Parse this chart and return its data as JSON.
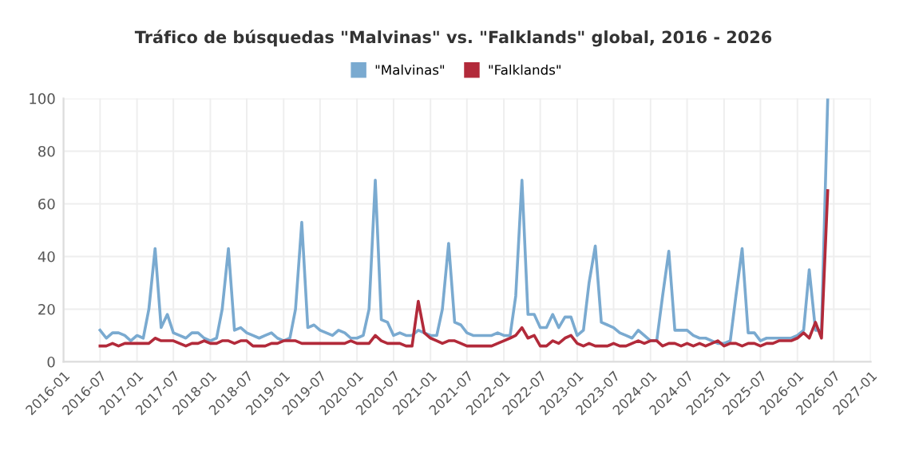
{
  "chart_data": {
    "type": "line",
    "title": "Tráfico de búsquedas \"Malvinas\" vs. \"Falklands\" global, 2016 - 2026",
    "xlim": [
      "2016-01",
      "2027-01"
    ],
    "xticks": [
      {
        "value": "2016-01",
        "label": "2016-01"
      },
      {
        "value": "2016-07",
        "label": "2016-07"
      },
      {
        "value": "2017-01",
        "label": "2017-01"
      },
      {
        "value": "2017-07",
        "label": "2017-07"
      },
      {
        "value": "2018-01",
        "label": "2018-01"
      },
      {
        "value": "2018-07",
        "label": "2018-07"
      },
      {
        "value": "2019-01",
        "label": "2019-01"
      },
      {
        "value": "2019-07",
        "label": "2019-07"
      },
      {
        "value": "2020-01",
        "label": "2020-01"
      },
      {
        "value": "2020-07",
        "label": "2020-07"
      },
      {
        "value": "2021-01",
        "label": "2021-01"
      },
      {
        "value": "2021-07",
        "label": "2021-07"
      },
      {
        "value": "2022-01",
        "label": "2022-01"
      },
      {
        "value": "2022-07",
        "label": "2022-07"
      },
      {
        "value": "2023-01",
        "label": "2023-01"
      },
      {
        "value": "2023-07",
        "label": "2023-07"
      },
      {
        "value": "2024-01",
        "label": "2024-01"
      },
      {
        "value": "2024-07",
        "label": "2024-07"
      },
      {
        "value": "2025-01",
        "label": "2025-01"
      },
      {
        "value": "2025-07",
        "label": "2025-07"
      },
      {
        "value": "2026-01",
        "label": "2026-01"
      },
      {
        "value": "2026-07",
        "label": "2026-07"
      },
      {
        "value": "2027-01",
        "label": "2027-01"
      }
    ],
    "ylim": [
      0,
      100
    ],
    "yticks": [
      0,
      20,
      40,
      60,
      80,
      100
    ],
    "grid": true,
    "legend": "top",
    "marker": "none",
    "line_style": "solid",
    "series": [
      {
        "name": "\"Malvinas\"",
        "color": "#7aaad0",
        "values": [
          12,
          9,
          11,
          11,
          10,
          8,
          10,
          9,
          20,
          43,
          13,
          18,
          11,
          10,
          9,
          11,
          11,
          9,
          8,
          9,
          20,
          43,
          12,
          13,
          11,
          10,
          9,
          10,
          11,
          9,
          8,
          9,
          20,
          53,
          13,
          14,
          12,
          11,
          10,
          12,
          11,
          9,
          9,
          10,
          20,
          69,
          16,
          15,
          10,
          11,
          10,
          10,
          12,
          11,
          10,
          10,
          20,
          45,
          15,
          14,
          11,
          10,
          10,
          10,
          10,
          11,
          10,
          10,
          25,
          69,
          18,
          18,
          13,
          13,
          18,
          13,
          17,
          17,
          10,
          12,
          30,
          44,
          15,
          14,
          13,
          11,
          10,
          9,
          12,
          10,
          8,
          8,
          25,
          42,
          12,
          12,
          12,
          10,
          9,
          9,
          8,
          7,
          7,
          8,
          25,
          43,
          11,
          11,
          8,
          9,
          9,
          9,
          9,
          9,
          10,
          12,
          35,
          12,
          12,
          100
        ]
      },
      {
        "name": "\"Falklands\"",
        "color": "#b22a3a",
        "values": [
          6,
          6,
          7,
          6,
          7,
          7,
          7,
          7,
          7,
          9,
          8,
          8,
          8,
          7,
          6,
          7,
          7,
          8,
          7,
          7,
          8,
          8,
          7,
          8,
          8,
          6,
          6,
          6,
          7,
          7,
          8,
          8,
          8,
          7,
          7,
          7,
          7,
          7,
          7,
          7,
          7,
          8,
          7,
          7,
          7,
          10,
          8,
          7,
          7,
          7,
          6,
          6,
          23,
          11,
          9,
          8,
          7,
          8,
          8,
          7,
          6,
          6,
          6,
          6,
          6,
          7,
          8,
          9,
          10,
          13,
          9,
          10,
          6,
          6,
          8,
          7,
          9,
          10,
          7,
          6,
          7,
          6,
          6,
          6,
          7,
          6,
          6,
          7,
          8,
          7,
          8,
          8,
          6,
          7,
          7,
          6,
          7,
          6,
          7,
          6,
          7,
          8,
          6,
          7,
          7,
          6,
          7,
          7,
          6,
          7,
          7,
          8,
          8,
          8,
          9,
          11,
          9,
          15,
          9,
          65
        ]
      }
    ],
    "x": [
      "2016-07",
      "2016-08",
      "2016-09",
      "2016-10",
      "2016-11",
      "2016-12",
      "2017-01",
      "2017-02",
      "2017-03",
      "2017-04",
      "2017-05",
      "2017-06",
      "2017-07",
      "2017-08",
      "2017-09",
      "2017-10",
      "2017-11",
      "2017-12",
      "2018-01",
      "2018-02",
      "2018-03",
      "2018-04",
      "2018-05",
      "2018-06",
      "2018-07",
      "2018-08",
      "2018-09",
      "2018-10",
      "2018-11",
      "2018-12",
      "2019-01",
      "2019-02",
      "2019-03",
      "2019-04",
      "2019-05",
      "2019-06",
      "2019-07",
      "2019-08",
      "2019-09",
      "2019-10",
      "2019-11",
      "2019-12",
      "2020-01",
      "2020-02",
      "2020-03",
      "2020-04",
      "2020-05",
      "2020-06",
      "2020-07",
      "2020-08",
      "2020-09",
      "2020-10",
      "2020-11",
      "2020-12",
      "2021-01",
      "2021-02",
      "2021-03",
      "2021-04",
      "2021-05",
      "2021-06",
      "2021-07",
      "2021-08",
      "2021-09",
      "2021-10",
      "2021-11",
      "2021-12",
      "2022-01",
      "2022-02",
      "2022-03",
      "2022-04",
      "2022-05",
      "2022-06",
      "2022-07",
      "2022-08",
      "2022-09",
      "2022-10",
      "2022-11",
      "2022-12",
      "2023-01",
      "2023-02",
      "2023-03",
      "2023-04",
      "2023-05",
      "2023-06",
      "2023-07",
      "2023-08",
      "2023-09",
      "2023-10",
      "2023-11",
      "2023-12",
      "2024-01",
      "2024-02",
      "2024-03",
      "2024-04",
      "2024-05",
      "2024-06",
      "2024-07",
      "2024-08",
      "2024-09",
      "2024-10",
      "2024-11",
      "2024-12",
      "2025-01",
      "2025-02",
      "2025-03",
      "2025-04",
      "2025-05",
      "2025-06",
      "2025-07",
      "2025-08",
      "2025-09",
      "2025-10",
      "2025-11",
      "2025-12",
      "2026-01",
      "2026-02",
      "2026-03",
      "2026-04",
      "2026-05",
      "2026-06"
    ]
  }
}
